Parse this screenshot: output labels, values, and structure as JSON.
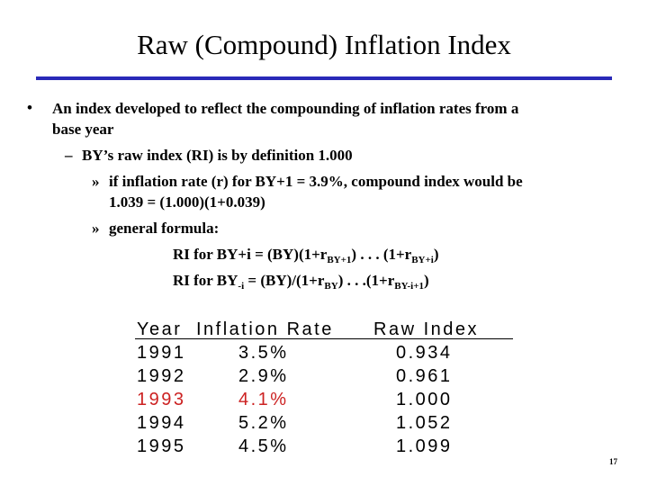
{
  "slide": {
    "title": "Raw (Compound) Inflation Index",
    "accent_color": "#2a2ab8",
    "bullets": {
      "l1_mark": "•",
      "l1_line1": "An index developed to reflect the compounding of inflation rates from a",
      "l1_line2": "base year",
      "l2_mark": "–",
      "l2_text": "BY’s raw index (RI) is by definition 1.000",
      "l3a_mark": "»",
      "l3a_line1": "if inflation rate (r) for BY+1 = 3.9%, compound index would be",
      "l3a_line2": "1.039 =  (1.000)(1+0.039)",
      "l3b_mark": "»",
      "l3b_text": "general formula:"
    },
    "formula1": {
      "a": "RI for BY+i = (BY)(1+r",
      "sub1": "BY+1",
      "b": ") . . . (1+r",
      "sub2": "BY+i",
      "c": ")"
    },
    "formula2": {
      "a": "RI for BY",
      "sub0": "-i",
      "b": " = (BY)/(1+r",
      "sub1": "BY",
      "c": ") . . .(1+r",
      "sub2": "BY-i+1",
      "d": ")"
    },
    "table": {
      "headers": [
        "Year",
        "Inflation Rate",
        "Raw Index"
      ],
      "highlight_color": "#cc2222",
      "rows": [
        [
          "1991",
          "3.5%",
          "0.934"
        ],
        [
          "1992",
          "2.9%",
          "0.961"
        ],
        [
          "1993",
          "4.1%",
          "1.000"
        ],
        [
          "1994",
          "5.2%",
          "1.052"
        ],
        [
          "1995",
          "4.5%",
          "1.099"
        ]
      ]
    },
    "page_number": "17"
  }
}
